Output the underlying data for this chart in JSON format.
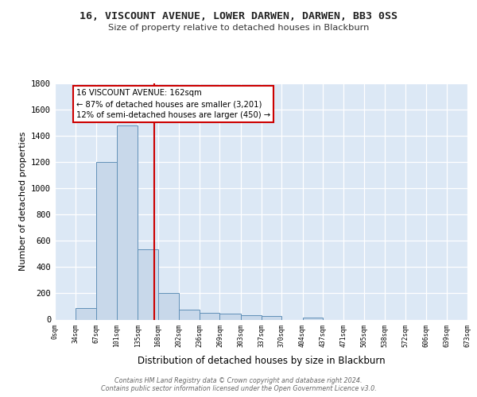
{
  "title": "16, VISCOUNT AVENUE, LOWER DARWEN, DARWEN, BB3 0SS",
  "subtitle": "Size of property relative to detached houses in Blackburn",
  "xlabel_bottom": "Distribution of detached houses by size in Blackburn",
  "ylabel": "Number of detached properties",
  "bin_edges": [
    0,
    34,
    67,
    101,
    135,
    168,
    202,
    236,
    269,
    303,
    337,
    370,
    404,
    437,
    471,
    505,
    538,
    572,
    606,
    639,
    673
  ],
  "bar_heights": [
    0,
    90,
    1200,
    1480,
    535,
    205,
    75,
    50,
    45,
    35,
    25,
    0,
    15,
    0,
    0,
    0,
    0,
    0,
    0,
    0
  ],
  "bar_color": "#c8d8ea",
  "bar_edge_color": "#6090b8",
  "background_color": "#dce8f5",
  "grid_color": "#ffffff",
  "red_line_x": 162,
  "annotation_text": "16 VISCOUNT AVENUE: 162sqm\n← 87% of detached houses are smaller (3,201)\n12% of semi-detached houses are larger (450) →",
  "annotation_box_color": "#ffffff",
  "annotation_border_color": "#cc0000",
  "ylim": [
    0,
    1800
  ],
  "yticks": [
    0,
    200,
    400,
    600,
    800,
    1000,
    1200,
    1400,
    1600,
    1800
  ],
  "footer_text": "Contains HM Land Registry data © Crown copyright and database right 2024.\nContains public sector information licensed under the Open Government Licence v3.0.",
  "tick_labels": [
    "0sqm",
    "34sqm",
    "67sqm",
    "101sqm",
    "135sqm",
    "168sqm",
    "202sqm",
    "236sqm",
    "269sqm",
    "303sqm",
    "337sqm",
    "370sqm",
    "404sqm",
    "437sqm",
    "471sqm",
    "505sqm",
    "538sqm",
    "572sqm",
    "606sqm",
    "639sqm",
    "673sqm"
  ]
}
